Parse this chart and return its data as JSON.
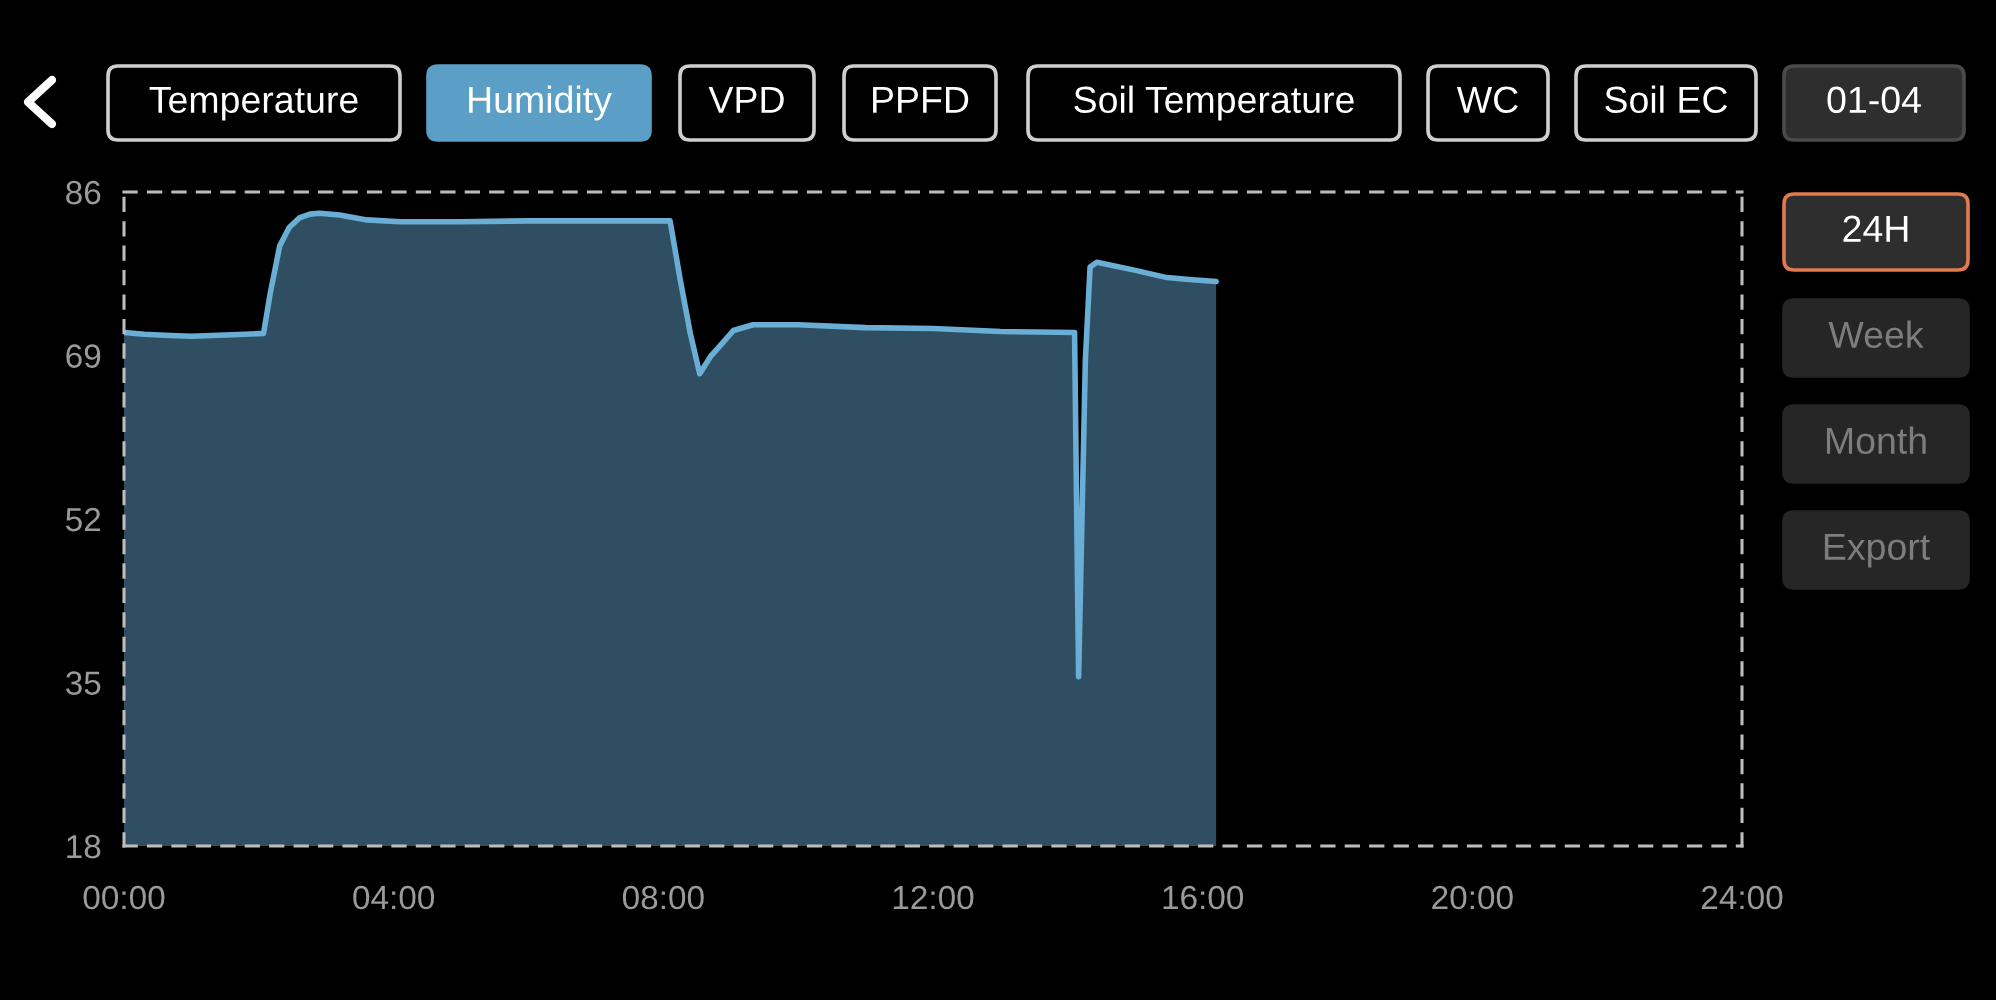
{
  "chart_data": {
    "type": "area",
    "x": [
      0,
      0.3,
      0.6,
      1.0,
      1.4,
      1.8,
      2.07,
      2.17,
      2.31,
      2.45,
      2.6,
      2.76,
      2.9,
      3.2,
      3.6,
      4.1,
      5.0,
      6.0,
      7.0,
      8.1,
      8.25,
      8.4,
      8.54,
      8.7,
      8.84,
      9.04,
      9.33,
      10.0,
      11.0,
      12.0,
      13.0,
      14.1,
      14.16,
      14.26,
      14.33,
      14.43,
      14.97,
      15.47,
      15.8,
      16.2
    ],
    "series": [
      {
        "color": "#6aaed6",
        "values": [
          71.4,
          71.2,
          71.1,
          71.0,
          71.1,
          71.2,
          71.3,
          75.5,
          80.4,
          82.3,
          83.3,
          83.7,
          83.8,
          83.6,
          83.1,
          82.9,
          82.9,
          83.0,
          83.0,
          83.0,
          76.9,
          71.3,
          67.1,
          68.9,
          70.0,
          71.6,
          72.2,
          72.2,
          71.9,
          71.8,
          71.5,
          71.4,
          35.6,
          68.5,
          78.2,
          78.7,
          77.9,
          77.1,
          76.9,
          76.7
        ]
      }
    ],
    "xlim": [
      0,
      24
    ],
    "xticks": [
      {
        "value": 0,
        "label": "00:00"
      },
      {
        "value": 4,
        "label": "04:00"
      },
      {
        "value": 8,
        "label": "08:00"
      },
      {
        "value": 12,
        "label": "12:00"
      },
      {
        "value": 16,
        "label": "16:00"
      },
      {
        "value": 20,
        "label": "20:00"
      },
      {
        "value": 24,
        "label": "24:00"
      }
    ],
    "ylim": [
      18,
      86
    ],
    "yticks": [
      18,
      35,
      52,
      69,
      86
    ],
    "annotations": [
      "Temperature",
      "Humidity",
      "VPD",
      "PPFD",
      "Soil Temperature",
      "WC",
      "Soil EC",
      "01-04",
      "24H",
      "Week",
      "Month",
      "Export"
    ]
  }
}
